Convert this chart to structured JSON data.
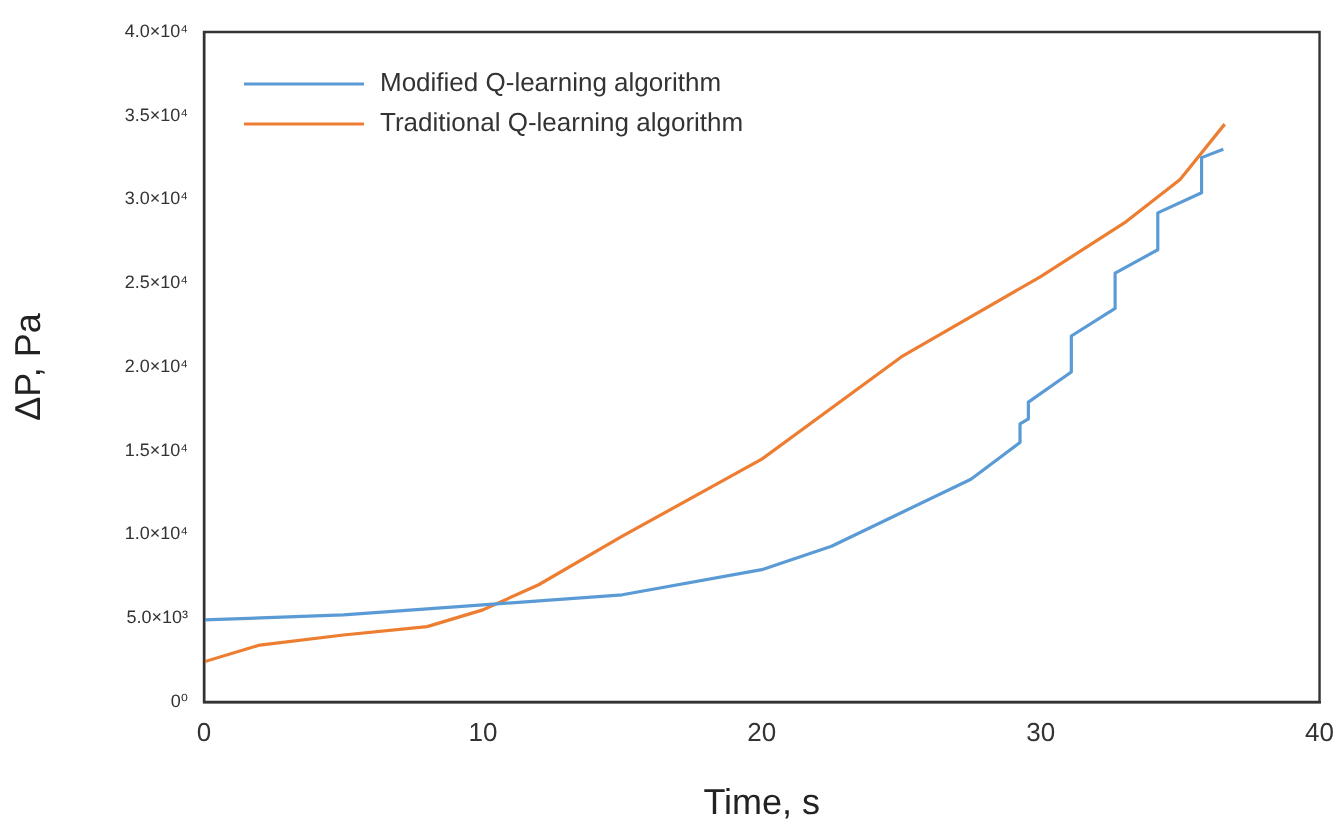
{
  "chart_data": {
    "type": "line",
    "xlabel": "Time, s",
    "ylabel": "ΔP, Pa",
    "xlim": [
      0,
      40
    ],
    "xticks": [
      0,
      10,
      20,
      30,
      40
    ],
    "ylim": [
      0,
      40000
    ],
    "yticks": [
      {
        "value": 0,
        "label": "0⁰"
      },
      {
        "value": 5000,
        "label": "5.0×10³"
      },
      {
        "value": 10000,
        "label": "1.0×10⁴"
      },
      {
        "value": 15000,
        "label": "1.5×10⁴"
      },
      {
        "value": 20000,
        "label": "2.0×10⁴"
      },
      {
        "value": 25000,
        "label": "2.5×10⁴"
      },
      {
        "value": 30000,
        "label": "3.0×10⁴"
      },
      {
        "value": 35000,
        "label": "3.5×10⁴"
      },
      {
        "value": 40000,
        "label": "4.0×10⁴"
      }
    ],
    "grid": false,
    "legend": "top left",
    "marker": "none",
    "line_style": "solid",
    "series": [
      {
        "name": "Modified Q-learning algorithm",
        "color": "#5b9bd5",
        "x": [
          0,
          5,
          10,
          15,
          20,
          22.5,
          25,
          27.5,
          29.26,
          29.26,
          29.56,
          29.56,
          31.1,
          31.1,
          32.67,
          32.67,
          34.2,
          34.2,
          35.77,
          35.77,
          36.55
        ],
        "values": [
          4900,
          5200,
          5800,
          6400,
          7900,
          9300,
          11300,
          13300,
          15500,
          16600,
          16900,
          17900,
          19700,
          21850,
          23500,
          25600,
          27000,
          29200,
          30400,
          32500,
          33000
        ]
      },
      {
        "name": "Traditional Q-learning algorithm",
        "color": "#ed7d31",
        "x": [
          0,
          2,
          5,
          8,
          10,
          12,
          15,
          20,
          25,
          30,
          33,
          35,
          36.6
        ],
        "values": [
          2400,
          3400,
          4000,
          4500,
          5500,
          7000,
          9900,
          14500,
          20600,
          25400,
          28600,
          31200,
          34500
        ]
      }
    ]
  }
}
